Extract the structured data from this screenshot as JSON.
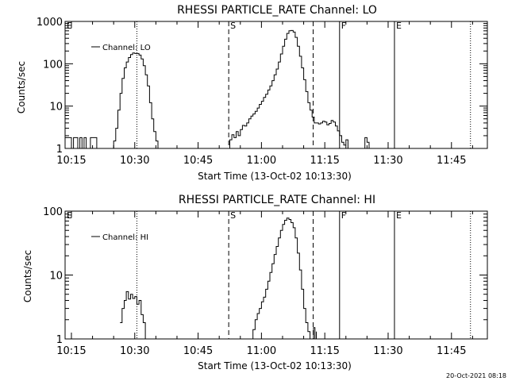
{
  "chart_data": [
    {
      "type": "line",
      "title": "RHESSI PARTICLE_RATE Channel: LO",
      "xlabel": "Start Time (13-Oct-02 10:13:30)",
      "ylabel": "Counts/sec",
      "yscale": "log",
      "xlim": [
        "10:13:30",
        "11:53:30"
      ],
      "ylim": [
        1,
        1000
      ],
      "x_ticks": [
        "10:15",
        "10:30",
        "10:45",
        "11:00",
        "11:15",
        "11:30",
        "11:45"
      ],
      "y_ticks": [
        "1",
        "10",
        "100",
        "1000"
      ],
      "legend": {
        "placement": "top-left",
        "entries": [
          "Channel: LO"
        ]
      },
      "markers": [
        {
          "label": "E",
          "time": "10:13:30",
          "style": "none"
        },
        {
          "label": "",
          "time": "10:30:30",
          "style": "dotted"
        },
        {
          "label": "S",
          "time": "10:52:15",
          "style": "dashed"
        },
        {
          "label": "",
          "time": "11:12:15",
          "style": "dashed"
        },
        {
          "label": "F",
          "time": "11:18:30",
          "style": "solid"
        },
        {
          "label": "E",
          "time": "11:31:30",
          "style": "solid"
        },
        {
          "label": "",
          "time": "11:49:30",
          "style": "dotted"
        }
      ],
      "series": [
        {
          "name": "Channel: LO",
          "segments": [
            {
              "t": [
                "10:13:30",
                "10:14:30",
                "10:15:00",
                "10:15:30",
                "10:16:00",
                "10:16:30",
                "10:17:00",
                "10:17:30",
                "10:18:00",
                "10:18:30",
                "10:19:00",
                "10:19:30",
                "10:20:00",
                "10:20:30",
                "10:21:00"
              ],
              "y": [
                1.8,
                1.8,
                1,
                1.8,
                1.8,
                1,
                1.8,
                1,
                1.8,
                1,
                1,
                1.8,
                1.8,
                1.8,
                1
              ]
            },
            {
              "t": [
                "10:24:30",
                "10:25:00",
                "10:25:30",
                "10:26:00",
                "10:26:30",
                "10:27:00",
                "10:27:30",
                "10:28:00",
                "10:28:30",
                "10:29:00",
                "10:29:30",
                "10:30:00",
                "10:30:30",
                "10:31:00",
                "10:31:30",
                "10:32:00",
                "10:32:30",
                "10:33:00",
                "10:33:30",
                "10:34:00",
                "10:34:30",
                "10:35:00",
                "10:35:30"
              ],
              "y": [
                1,
                1.5,
                3,
                8,
                20,
                45,
                80,
                110,
                140,
                165,
                180,
                175,
                175,
                160,
                130,
                90,
                55,
                30,
                12,
                5,
                2.5,
                1.5,
                1
              ]
            },
            {
              "t": [
                "10:52:00",
                "10:52:30",
                "10:53:00",
                "10:53:30",
                "10:54:00",
                "10:54:30",
                "10:55:00",
                "10:55:30",
                "10:56:00",
                "10:56:30",
                "10:57:00",
                "10:57:30",
                "10:58:00",
                "10:58:30",
                "10:59:00",
                "10:59:30",
                "11:00:00",
                "11:00:30",
                "11:01:00",
                "11:01:30",
                "11:02:00",
                "11:02:30",
                "11:03:00",
                "11:03:30",
                "11:04:00",
                "11:04:30",
                "11:05:00",
                "11:05:30",
                "11:06:00",
                "11:06:30",
                "11:07:00",
                "11:07:30",
                "11:08:00",
                "11:08:30",
                "11:09:00",
                "11:09:30",
                "11:10:00",
                "11:10:30",
                "11:11:00",
                "11:11:30",
                "11:12:00",
                "11:12:30",
                "11:13:00",
                "11:13:30",
                "11:14:00",
                "11:14:30",
                "11:15:00",
                "11:15:30",
                "11:16:00",
                "11:16:30",
                "11:17:00",
                "11:17:30",
                "11:18:00",
                "11:18:30"
              ],
              "y": [
                1,
                1.6,
                2.1,
                1.8,
                2.5,
                2,
                2.8,
                3.5,
                3.4,
                4,
                5,
                5.8,
                6.5,
                7.5,
                9,
                11,
                13,
                16,
                19,
                24,
                30,
                40,
                55,
                75,
                110,
                170,
                260,
                380,
                520,
                600,
                610,
                560,
                420,
                260,
                150,
                80,
                42,
                22,
                12,
                8,
                5.5,
                4,
                4,
                3.8,
                4,
                4.4,
                4.2,
                3.6,
                3.9,
                4.6,
                4.2,
                3.4,
                2.6,
                2
              ]
            },
            {
              "t": [
                "11:18:30",
                "11:19:00",
                "11:19:30",
                "11:20:00",
                "11:20:30"
              ],
              "y": [
                2,
                1.4,
                1.2,
                1.6,
                1
              ]
            },
            {
              "t": [
                "11:24:00",
                "11:24:30",
                "11:25:00",
                "11:25:30"
              ],
              "y": [
                1,
                1.8,
                1.4,
                1
              ]
            }
          ]
        }
      ]
    },
    {
      "type": "line",
      "title": "RHESSI PARTICLE_RATE Channel: HI",
      "xlabel": "Start Time (13-Oct-02 10:13:30)",
      "ylabel": "Counts/sec",
      "yscale": "log",
      "xlim": [
        "10:13:30",
        "11:53:30"
      ],
      "ylim": [
        1,
        100
      ],
      "x_ticks": [
        "10:15",
        "10:30",
        "10:45",
        "11:00",
        "11:15",
        "11:30",
        "11:45"
      ],
      "y_ticks": [
        "1",
        "10",
        "100"
      ],
      "legend": {
        "placement": "top-left",
        "entries": [
          "Channel: HI"
        ]
      },
      "markers": [
        {
          "label": "E",
          "time": "10:13:30",
          "style": "none"
        },
        {
          "label": "",
          "time": "10:30:30",
          "style": "dotted"
        },
        {
          "label": "S",
          "time": "10:52:15",
          "style": "dashed"
        },
        {
          "label": "",
          "time": "11:12:15",
          "style": "dashed"
        },
        {
          "label": "F",
          "time": "11:18:30",
          "style": "solid"
        },
        {
          "label": "E",
          "time": "11:31:30",
          "style": "solid"
        },
        {
          "label": "",
          "time": "11:49:30",
          "style": "dotted"
        }
      ],
      "series": [
        {
          "name": "Channel: HI",
          "segments": [
            {
              "t": [
                "10:26:30",
                "10:27:00",
                "10:27:30",
                "10:28:00",
                "10:28:30",
                "10:29:00",
                "10:29:30",
                "10:30:00",
                "10:30:30",
                "10:31:00",
                "10:31:30",
                "10:32:00",
                "10:32:30"
              ],
              "y": [
                1.8,
                3,
                4,
                5.5,
                4.2,
                5,
                4.3,
                4.6,
                3.5,
                4,
                2.4,
                1.8,
                1
              ]
            },
            {
              "t": [
                "10:57:30",
                "10:58:00",
                "10:58:30",
                "10:59:00",
                "10:59:30",
                "11:00:00",
                "11:00:30",
                "11:01:00",
                "11:01:30",
                "11:02:00",
                "11:02:30",
                "11:03:00",
                "11:03:30",
                "11:04:00",
                "11:04:30",
                "11:05:00",
                "11:05:30",
                "11:06:00",
                "11:06:30",
                "11:07:00",
                "11:07:30",
                "11:08:00",
                "11:08:30",
                "11:09:00",
                "11:09:30",
                "11:10:00",
                "11:10:30",
                "11:11:00",
                "11:11:30",
                "11:12:00"
              ],
              "y": [
                1,
                1.4,
                2,
                2.5,
                3,
                3.8,
                4.5,
                6,
                8,
                11,
                15,
                21,
                28,
                38,
                50,
                62,
                72,
                78,
                74,
                66,
                55,
                38,
                22,
                12,
                6,
                3,
                1.8,
                1.3,
                1,
                1
              ]
            },
            {
              "t": [
                "11:12:00",
                "11:12:20",
                "11:12:40",
                "11:13:00"
              ],
              "y": [
                1,
                1.5,
                1,
                1.3
              ]
            }
          ]
        }
      ]
    }
  ],
  "footer": {
    "timestamp": "20-Oct-2021 08:18"
  }
}
